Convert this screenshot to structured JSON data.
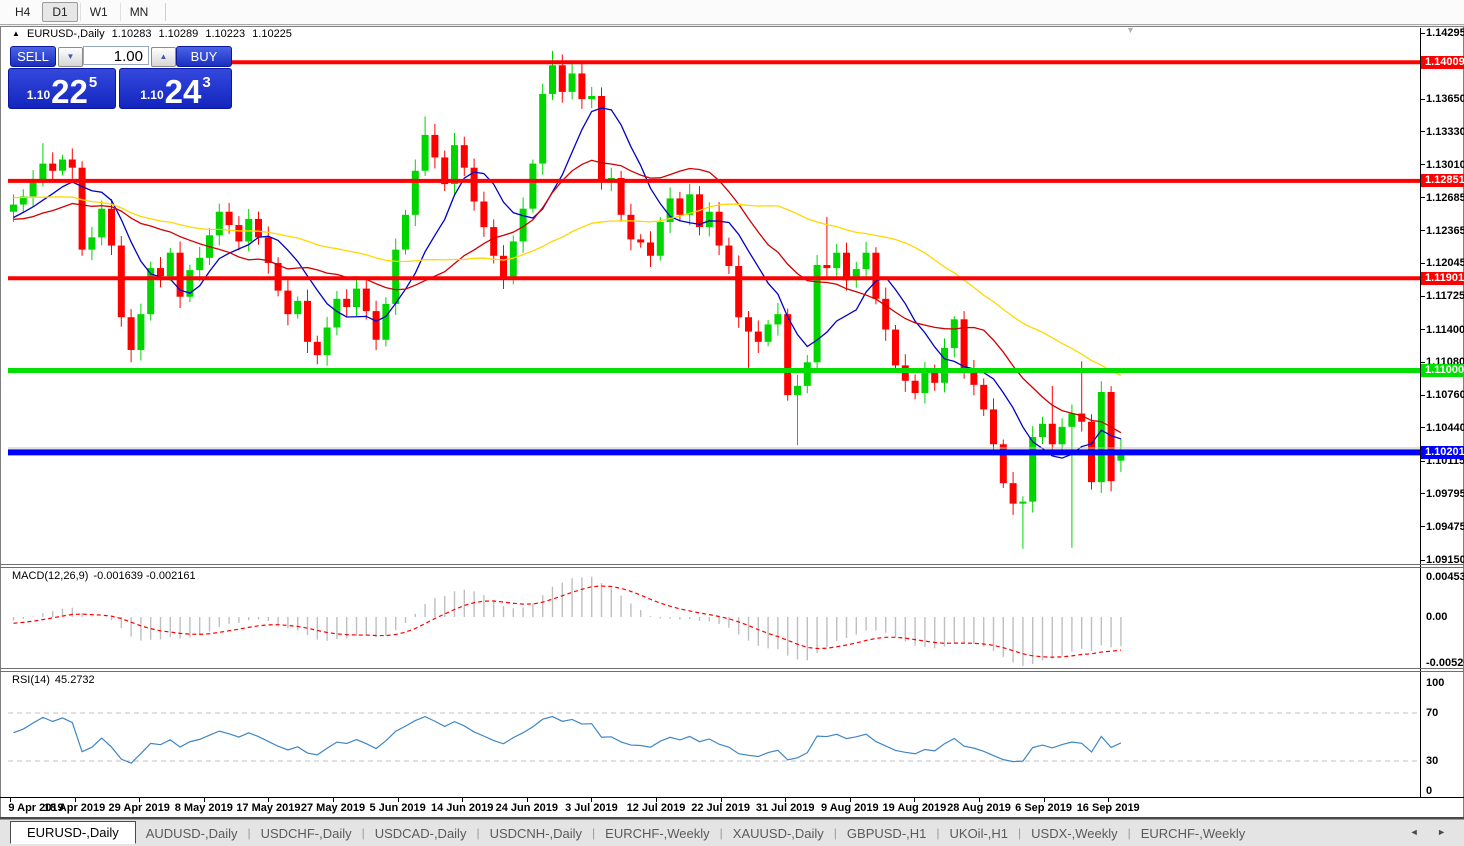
{
  "toolbar": {
    "timeframes": [
      {
        "label": "H4",
        "active": false
      },
      {
        "label": "D1",
        "active": true
      },
      {
        "label": "W1",
        "active": false
      },
      {
        "label": "MN",
        "active": false
      }
    ]
  },
  "icons": {
    "symbol_arrow": "▲",
    "spinner_down": "▼",
    "spinner_up": "▲",
    "shift_marker": "▼",
    "tab_scroll": "◄ ►"
  },
  "chart": {
    "symbol_label": "EURUSD-,Daily",
    "ohlc": {
      "open": "1.10283",
      "high": "1.10289",
      "low": "1.10223",
      "close": "1.10225"
    },
    "trade": {
      "sell_label": "SELL",
      "buy_label": "BUY",
      "volume": "1.00",
      "bid": {
        "small": "1.10",
        "big": "22",
        "sup": "5"
      },
      "ask": {
        "small": "1.10",
        "big": "24",
        "sup": "3"
      }
    },
    "price_axis_ticks": [
      "1.14295",
      "1.13970",
      "1.13650",
      "1.13330",
      "1.13010",
      "1.12685",
      "1.12365",
      "1.12045",
      "1.11725",
      "1.11400",
      "1.11080",
      "1.10760",
      "1.10440",
      "1.10115",
      "1.09795",
      "1.09475",
      "1.09150"
    ],
    "hlines": [
      {
        "label": "1.14009",
        "price": 1.14009,
        "color": "#ff0000",
        "w": 4
      },
      {
        "label": "1.12851",
        "price": 1.12851,
        "color": "#ff0000",
        "w": 4
      },
      {
        "label": "1.11901",
        "price": 1.11901,
        "color": "#ff0000",
        "w": 4
      },
      {
        "label": "1.11000",
        "price": 1.11,
        "color": "#00df00",
        "w": 5
      },
      {
        "label": "1.10201",
        "price": 1.10201,
        "color": "#0000ff",
        "w": 6
      }
    ],
    "ask_line": {
      "price": 1.10243,
      "color": "#c3c3c3"
    },
    "date_axis": [
      "9 Apr 2019",
      "18 Apr 2019",
      "29 Apr 2019",
      "8 May 2019",
      "17 May 2019",
      "27 May 2019",
      "5 Jun 2019",
      "14 Jun 2019",
      "24 Jun 2019",
      "3 Jul 2019",
      "12 Jul 2019",
      "22 Jul 2019",
      "31 Jul 2019",
      "9 Aug 2019",
      "19 Aug 2019",
      "28 Aug 2019",
      "6 Sep 2019",
      "16 Sep 2019"
    ],
    "candle_colors": {
      "bull": "#00d500",
      "bear": "#ff0000"
    },
    "ma_lines": [
      {
        "name": "ma-fast",
        "period": 8,
        "color": "#0000c8"
      },
      {
        "name": "ma-medium",
        "period": 18,
        "color": "#d00000"
      },
      {
        "name": "ma-slow",
        "period": 40,
        "color": "#ffd800"
      }
    ],
    "candles": {
      "warmup": [
        1.1248,
        1.1262,
        1.1275,
        1.1282,
        1.127,
        1.1258,
        1.1265,
        1.128,
        1.1295,
        1.1288,
        1.1302,
        1.131,
        1.1318,
        1.1305,
        1.1292,
        1.1285,
        1.1298,
        1.131,
        1.1302,
        1.129,
        1.1278,
        1.1265,
        1.127,
        1.1282,
        1.1275,
        1.1262,
        1.1255,
        1.1268,
        1.126,
        1.1248,
        1.124,
        1.1252,
        1.1245,
        1.1235,
        1.1242,
        1.1255,
        1.1248,
        1.1238,
        1.123,
        1.1242,
        1.125,
        1.1244,
        1.1252,
        1.126,
        1.1255
      ],
      "closes": [
        1.1262,
        1.127,
        1.1285,
        1.1302,
        1.1295,
        1.1306,
        1.1298,
        1.1218,
        1.123,
        1.1258,
        1.1222,
        1.1152,
        1.112,
        1.1155,
        1.12,
        1.1192,
        1.1215,
        1.1172,
        1.1198,
        1.121,
        1.1232,
        1.1255,
        1.1242,
        1.1226,
        1.1248,
        1.123,
        1.1205,
        1.1178,
        1.1155,
        1.1168,
        1.1128,
        1.1115,
        1.1142,
        1.117,
        1.1162,
        1.118,
        1.1158,
        1.113,
        1.1165,
        1.1218,
        1.1252,
        1.1295,
        1.133,
        1.1308,
        1.1282,
        1.132,
        1.1298,
        1.1265,
        1.124,
        1.1212,
        1.119,
        1.1226,
        1.1258,
        1.1302,
        1.137,
        1.1398,
        1.1372,
        1.139,
        1.1365,
        1.1368,
        1.1285,
        1.1288,
        1.1252,
        1.1228,
        1.1225,
        1.1212,
        1.1245,
        1.1268,
        1.1252,
        1.1272,
        1.124,
        1.1255,
        1.1222,
        1.1202,
        1.1152,
        1.1138,
        1.1128,
        1.1145,
        1.1155,
        1.1076,
        1.1085,
        1.1108,
        1.1203,
        1.12,
        1.1215,
        1.1188,
        1.1199,
        1.1215,
        1.117,
        1.114,
        1.1105,
        1.109,
        1.1078,
        1.1098,
        1.1088,
        1.1122,
        1.115,
        1.11,
        1.1086,
        1.1062,
        1.1028,
        1.099,
        1.097,
        1.0972,
        1.1035,
        1.1048,
        1.1028,
        1.1045,
        1.1058,
        1.105,
        1.0991,
        1.1079,
        1.0992,
        1.10225
      ],
      "overrides": {
        "3": {
          "h": 1.1322
        },
        "7": {
          "l": 1.1212
        },
        "12": {
          "l": 1.1108
        },
        "21": {
          "h": 1.1263
        },
        "31": {
          "l": 1.1106
        },
        "42": {
          "h": 1.1348
        },
        "45": {
          "h": 1.1332
        },
        "54": {
          "h": 1.138
        },
        "55": {
          "h": 1.1412
        },
        "57": {
          "h": 1.14
        },
        "75": {
          "l": 1.1102
        },
        "80": {
          "l": 1.1027
        },
        "83": {
          "h": 1.125
        },
        "96": {
          "h": 1.1153
        },
        "103": {
          "l": 1.0926
        },
        "106": {
          "h": 1.1085
        },
        "108": {
          "l": 1.0927
        },
        "109": {
          "h": 1.1109
        },
        "112": {
          "l": 1.0982
        },
        "113": {
          "o": 1.1012
        }
      }
    }
  },
  "macd": {
    "title": "MACD(12,26,9)",
    "values": "-0.001639 -0.002161",
    "fast": 12,
    "slow": 26,
    "signal": 9,
    "axis": [
      "0.004536",
      "0.00",
      "-0.005205"
    ],
    "hist_color": "#bfbfbf",
    "signal_color": "#ff0000"
  },
  "rsi": {
    "title": "RSI(14)",
    "value": "45.2732",
    "period": 14,
    "levels": [
      70,
      30
    ],
    "axis": [
      "100",
      "70",
      "30",
      "0"
    ],
    "line_color": "#3e86c6",
    "level_color": "#c0c0c0"
  },
  "tabs": {
    "active_index": 0,
    "items": [
      "EURUSD-,Daily",
      "AUDUSD-,Daily",
      "USDCHF-,Daily",
      "USDCAD-,Daily",
      "USDCNH-,Daily",
      "EURCHF-,Weekly",
      "XAUUSD-,Daily",
      "GBPUSD-,H1",
      "UKOil-,H1",
      "USDX-,Weekly",
      "EURCHF-,Weekly"
    ]
  }
}
